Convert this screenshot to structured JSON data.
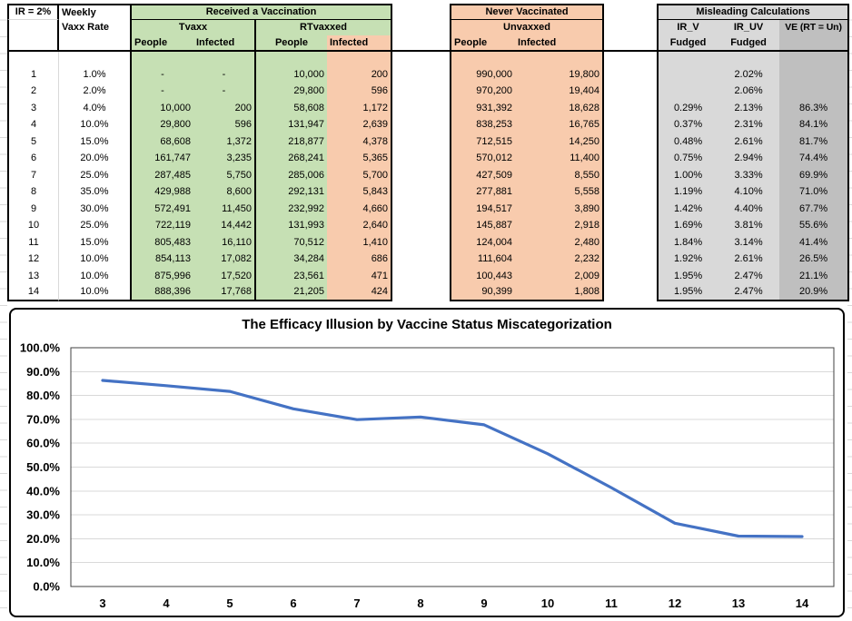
{
  "table": {
    "corner_label": "IR = 2%",
    "weekly_label_line1": "Weekly",
    "weekly_label_line2": "Vaxx Rate",
    "group_received": "Received a Vaccination",
    "group_never": "Never Vaccinated",
    "group_misleading": "Misleading Calculations",
    "sub_tvaxx": "Tvaxx",
    "sub_rtvaxxed": "RTvaxxed",
    "sub_unvaxxed": "Unvaxxed",
    "col_people": "People",
    "col_infected": "Infected",
    "col_ir_v": "IR_V",
    "col_ir_uv": "IR_UV",
    "col_ve": "VE (RT = Un)",
    "col_fudged": "Fudged",
    "rows": [
      [
        "1",
        "1.0%",
        "-",
        "-",
        "10,000",
        "200",
        "990,000",
        "19,800",
        "",
        "2.02%",
        ""
      ],
      [
        "2",
        "2.0%",
        "-",
        "-",
        "29,800",
        "596",
        "970,200",
        "19,404",
        "",
        "2.06%",
        ""
      ],
      [
        "3",
        "4.0%",
        "10,000",
        "200",
        "58,608",
        "1,172",
        "931,392",
        "18,628",
        "0.29%",
        "2.13%",
        "86.3%"
      ],
      [
        "4",
        "10.0%",
        "29,800",
        "596",
        "131,947",
        "2,639",
        "838,253",
        "16,765",
        "0.37%",
        "2.31%",
        "84.1%"
      ],
      [
        "5",
        "15.0%",
        "68,608",
        "1,372",
        "218,877",
        "4,378",
        "712,515",
        "14,250",
        "0.48%",
        "2.61%",
        "81.7%"
      ],
      [
        "6",
        "20.0%",
        "161,747",
        "3,235",
        "268,241",
        "5,365",
        "570,012",
        "11,400",
        "0.75%",
        "2.94%",
        "74.4%"
      ],
      [
        "7",
        "25.0%",
        "287,485",
        "5,750",
        "285,006",
        "5,700",
        "427,509",
        "8,550",
        "1.00%",
        "3.33%",
        "69.9%"
      ],
      [
        "8",
        "35.0%",
        "429,988",
        "8,600",
        "292,131",
        "5,843",
        "277,881",
        "5,558",
        "1.19%",
        "4.10%",
        "71.0%"
      ],
      [
        "9",
        "30.0%",
        "572,491",
        "11,450",
        "232,992",
        "4,660",
        "194,517",
        "3,890",
        "1.42%",
        "4.40%",
        "67.7%"
      ],
      [
        "10",
        "25.0%",
        "722,119",
        "14,442",
        "131,993",
        "2,640",
        "145,887",
        "2,918",
        "1.69%",
        "3.81%",
        "55.6%"
      ],
      [
        "11",
        "15.0%",
        "805,483",
        "16,110",
        "70,512",
        "1,410",
        "124,004",
        "2,480",
        "1.84%",
        "3.14%",
        "41.4%"
      ],
      [
        "12",
        "10.0%",
        "854,113",
        "17,082",
        "34,284",
        "686",
        "111,604",
        "2,232",
        "1.92%",
        "2.61%",
        "26.5%"
      ],
      [
        "13",
        "10.0%",
        "875,996",
        "17,520",
        "23,561",
        "471",
        "100,443",
        "2,009",
        "1.95%",
        "2.47%",
        "21.1%"
      ],
      [
        "14",
        "10.0%",
        "888,396",
        "17,768",
        "21,205",
        "424",
        "90,399",
        "1,808",
        "1.95%",
        "2.47%",
        "20.9%"
      ]
    ]
  },
  "chart_data": {
    "type": "line",
    "title": "The Efficacy Illusion by Vaccine Status Miscategorization",
    "categories": [
      3,
      4,
      5,
      6,
      7,
      8,
      9,
      10,
      11,
      12,
      13,
      14
    ],
    "series": [
      {
        "name": "VE (RT = Un)",
        "values": [
          86.3,
          84.1,
          81.7,
          74.4,
          69.9,
          71.0,
          67.7,
          55.6,
          41.4,
          26.5,
          21.1,
          20.9
        ]
      }
    ],
    "xlabel": "",
    "ylabel": "",
    "ylim": [
      0,
      100
    ],
    "ytick_labels": [
      "0.0%",
      "10.0%",
      "20.0%",
      "30.0%",
      "40.0%",
      "50.0%",
      "60.0%",
      "70.0%",
      "80.0%",
      "90.0%",
      "100.0%"
    ],
    "grid": true,
    "legend": "none"
  },
  "colors": {
    "green_fill": "#C6E0B4",
    "orange_fill": "#F8CBAD",
    "gray_light_fill": "#D9D9D9",
    "gray_dark_fill": "#BFBFBF",
    "line_blue": "#4472C4",
    "gridline": "#D9D9D9",
    "plot_border": "#404040"
  }
}
